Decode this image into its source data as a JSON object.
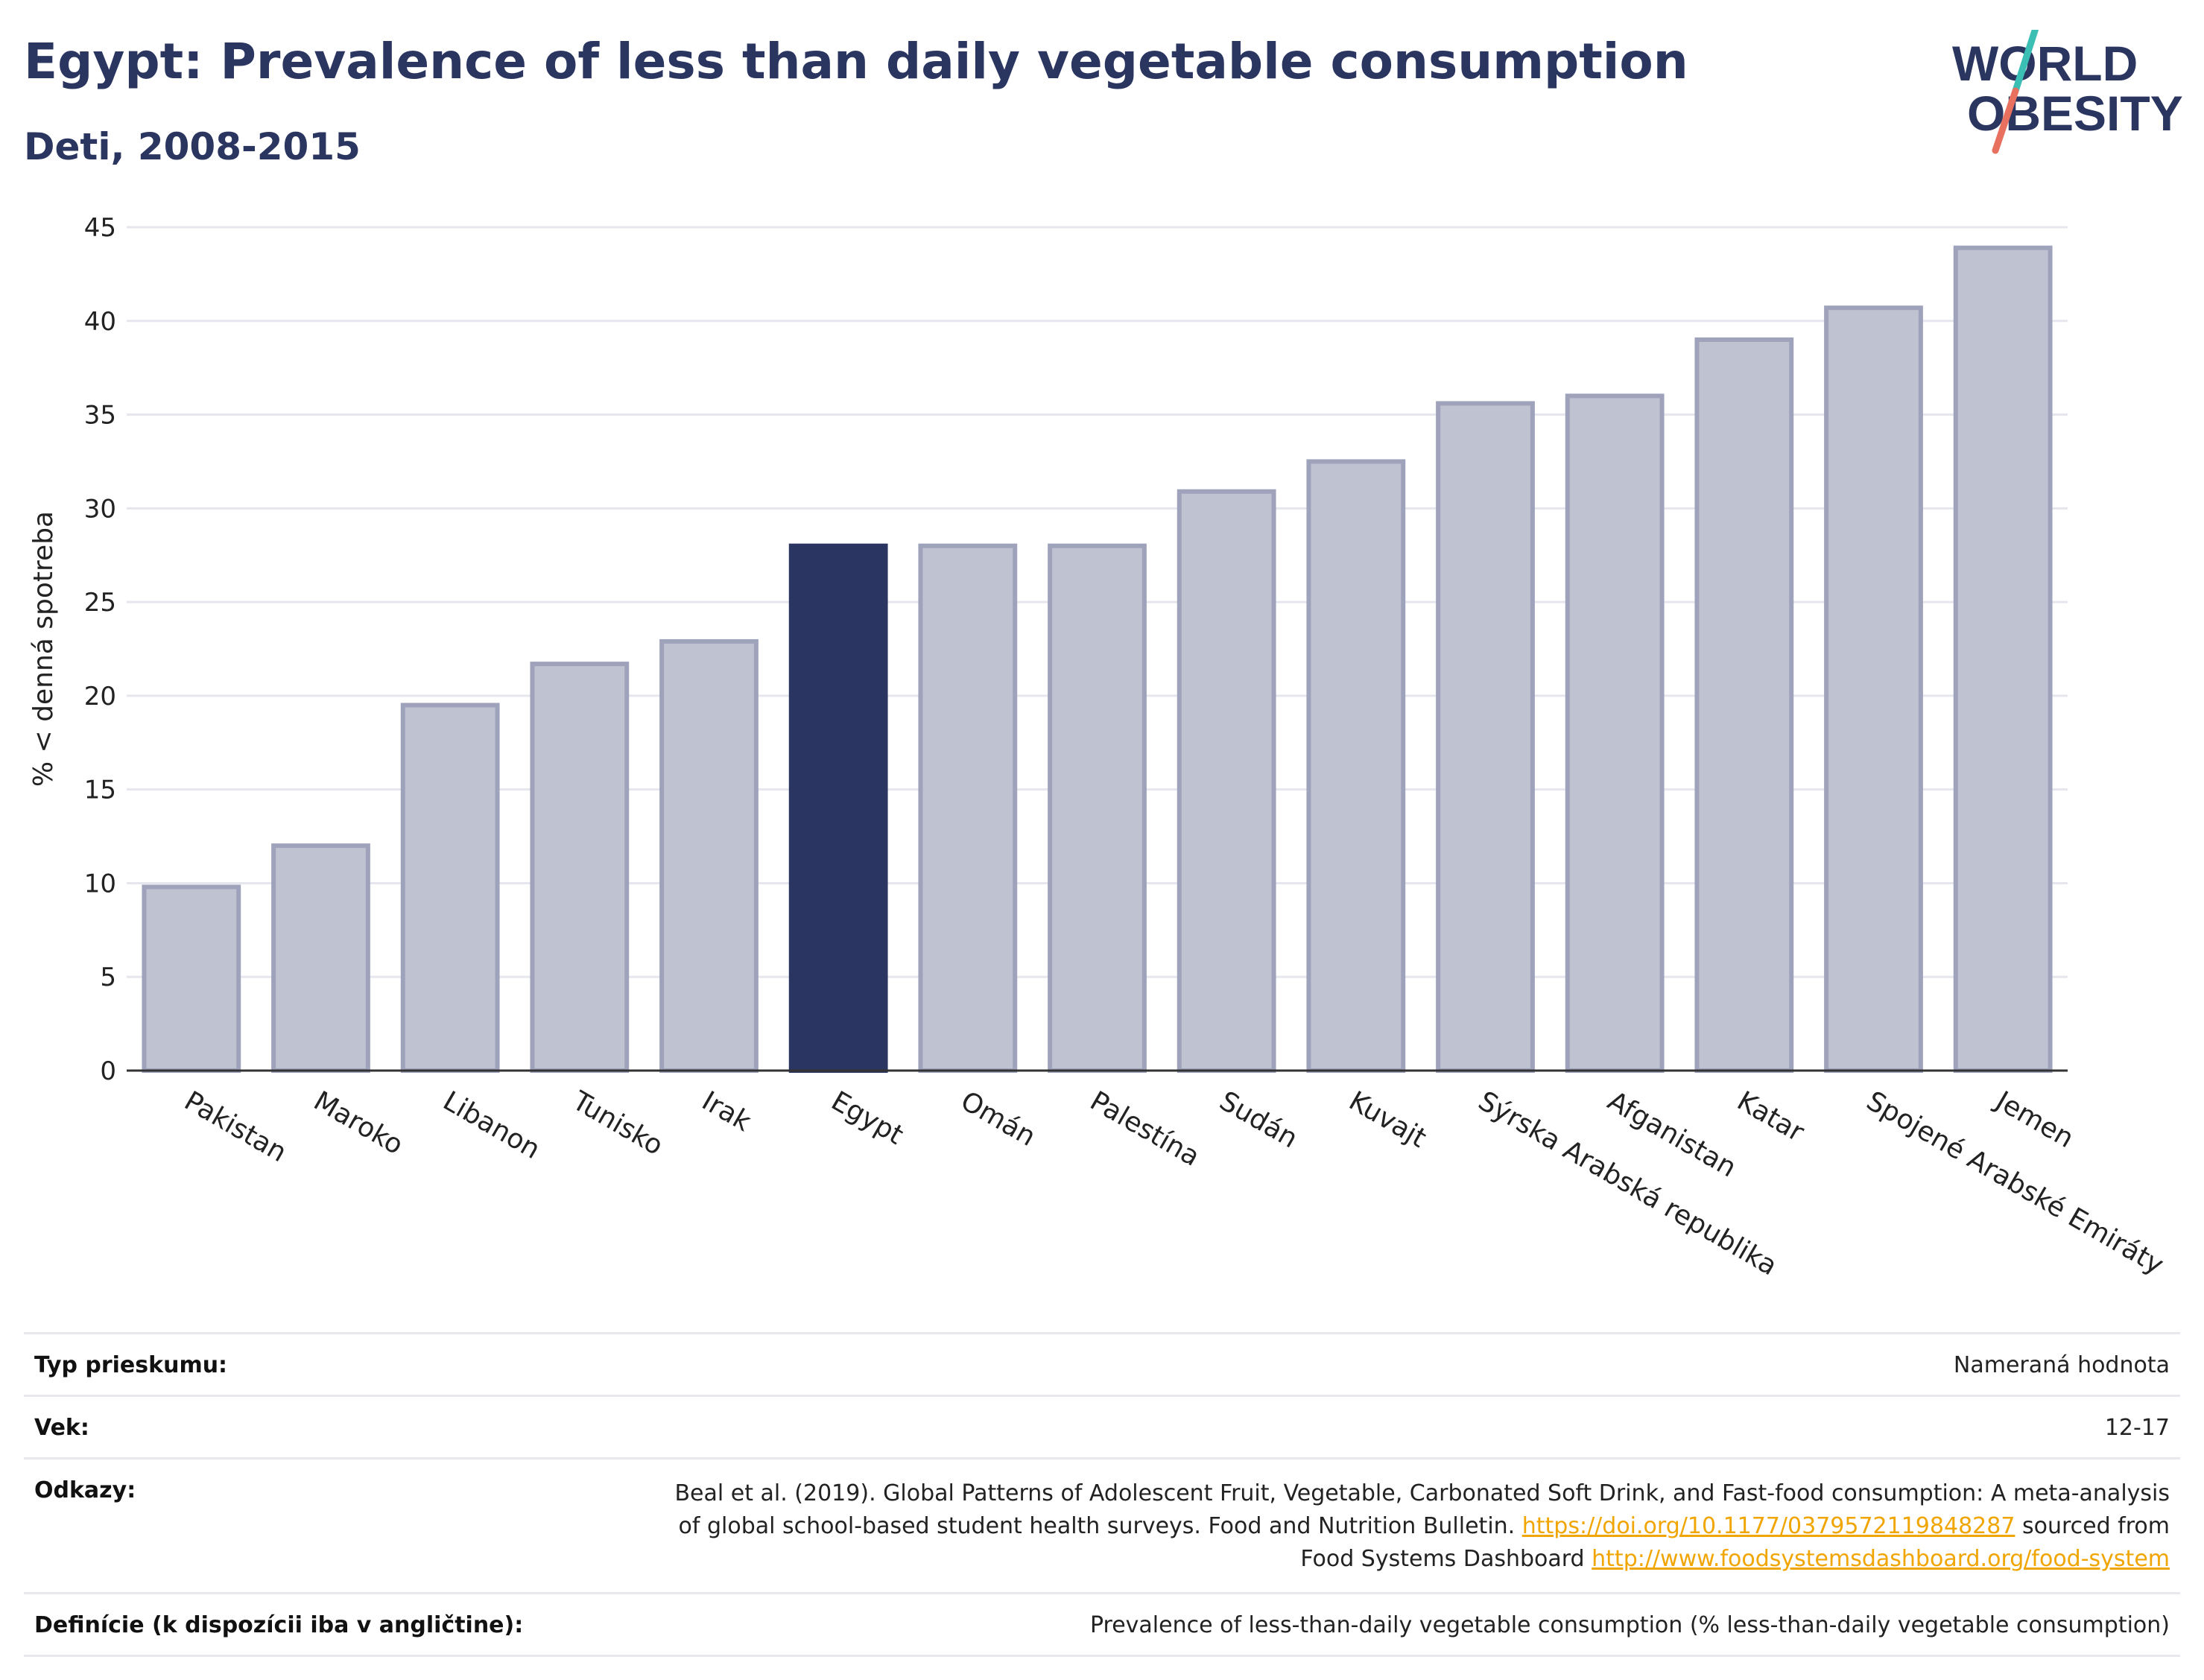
{
  "header": {
    "title": "Egypt: Prevalence of less than daily vegetable consumption",
    "subtitle": "Deti, 2008-2015",
    "logo_line1": "WORLD",
    "logo_line2": "OBESITY"
  },
  "colors": {
    "highlight": "#2b3561",
    "bar_fill": "#bfc2d0",
    "bar_stroke": "#9ea3bb",
    "title": "#2a3560",
    "link": "#f0a500",
    "logo_teal": "#3bbfb4",
    "logo_coral": "#e8705f"
  },
  "chart_data": {
    "type": "bar",
    "title": "Egypt: Prevalence of less than daily vegetable consumption",
    "subtitle": "Deti, 2008-2015",
    "ylabel": "% < denná spotreba",
    "xlabel": "",
    "ylim": [
      0,
      45
    ],
    "yticks": [
      0,
      5,
      10,
      15,
      20,
      25,
      30,
      35,
      40,
      45
    ],
    "grid": true,
    "highlight": "Egypt",
    "categories": [
      "Pakistan",
      "Maroko",
      "Libanon",
      "Tunisko",
      "Irak",
      "Egypt",
      "Omán",
      "Palestína",
      "Sudán",
      "Kuvajt",
      "Sýrska Arabská republika",
      "Afganistan",
      "Katar",
      "Spojené Arabské Emiráty",
      "Jemen"
    ],
    "values": [
      9.8,
      12.0,
      19.5,
      21.7,
      22.9,
      28.0,
      28.0,
      28.0,
      30.9,
      32.5,
      35.6,
      36.0,
      39.0,
      40.7,
      43.9
    ]
  },
  "meta": {
    "rows": [
      {
        "label": "Typ prieskumu:",
        "value": "Nameraná hodnota"
      },
      {
        "label": "Vek:",
        "value": "12-17"
      },
      {
        "label": "Odkazy:",
        "line1": "Beal et al. (2019). Global Patterns of Adolescent Fruit, Vegetable, Carbonated Soft Drink, and Fast-food consumption: A meta-analysis",
        "line2_pre": "of global school-based student health surveys. Food and Nutrition Bulletin.",
        "link1": "https://doi.org/10.1177/0379572119848287",
        "line2_post": "sourced from",
        "line3_pre": "Food Systems Dashboard",
        "link2": "http://www.foodsystemsdashboard.org/food-system"
      },
      {
        "label": "Definície (k dispozícii iba v angličtine):",
        "value": "Prevalence of less-than-daily vegetable consumption (% less-than-daily vegetable consumption)"
      }
    ]
  }
}
